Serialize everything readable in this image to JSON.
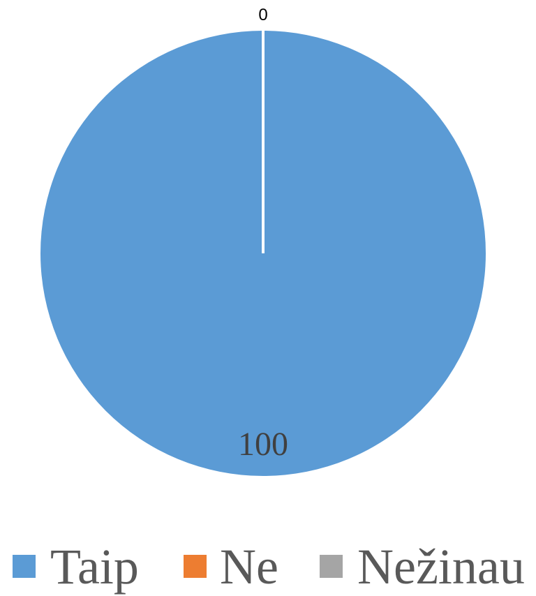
{
  "chart_data": {
    "type": "pie",
    "categories": [
      "Taip",
      "Ne",
      "Nežinau"
    ],
    "values": [
      100,
      0,
      0
    ],
    "colors": [
      "#5b9bd5",
      "#ed7d31",
      "#a5a5a5"
    ],
    "data_labels": [
      "100",
      "0",
      ""
    ],
    "legend_position": "bottom",
    "start_angle_deg": 0
  }
}
